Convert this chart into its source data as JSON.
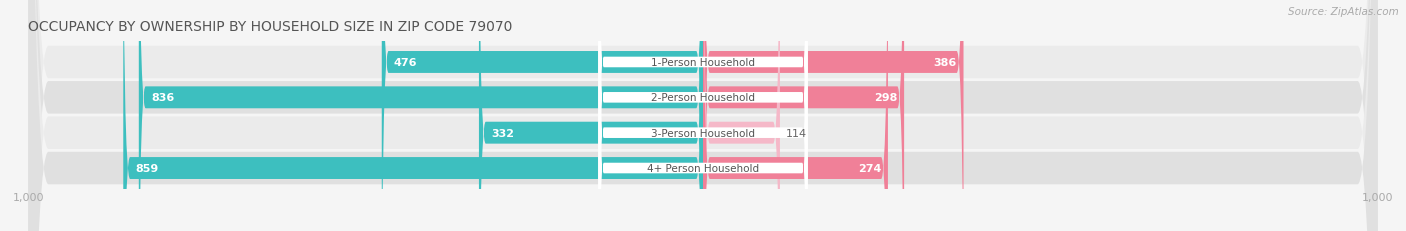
{
  "title": "OCCUPANCY BY OWNERSHIP BY HOUSEHOLD SIZE IN ZIP CODE 79070",
  "source": "Source: ZipAtlas.com",
  "categories": [
    "1-Person Household",
    "2-Person Household",
    "3-Person Household",
    "4+ Person Household"
  ],
  "owner_values": [
    476,
    836,
    332,
    859
  ],
  "renter_values": [
    386,
    298,
    114,
    274
  ],
  "owner_color": "#3dbfbf",
  "renter_color": "#f08098",
  "owner_color_light": "#a8e0e0",
  "renter_color_light": "#f5b8c8",
  "row_bg_color_odd": "#f0f0f0",
  "row_bg_color_even": "#e0e0e0",
  "axis_max": 1000,
  "title_fontsize": 10,
  "source_fontsize": 7.5,
  "bar_label_fontsize": 8,
  "category_fontsize": 7.5,
  "axis_label_fontsize": 8,
  "fig_bg_color": "#f5f5f5"
}
